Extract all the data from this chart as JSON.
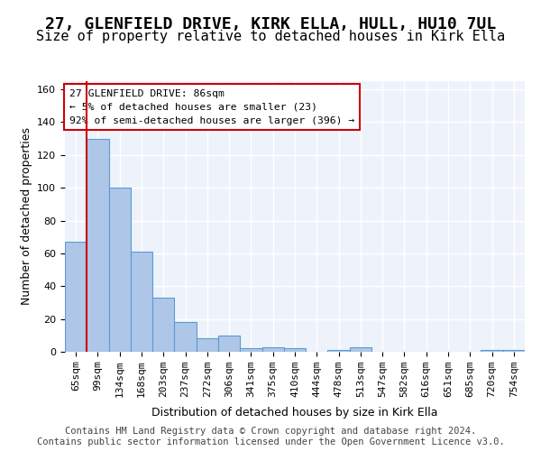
{
  "title": "27, GLENFIELD DRIVE, KIRK ELLA, HULL, HU10 7UL",
  "subtitle": "Size of property relative to detached houses in Kirk Ella",
  "xlabel": "Distribution of detached houses by size in Kirk Ella",
  "ylabel": "Number of detached properties",
  "categories": [
    "65sqm",
    "99sqm",
    "134sqm",
    "168sqm",
    "203sqm",
    "237sqm",
    "272sqm",
    "306sqm",
    "341sqm",
    "375sqm",
    "410sqm",
    "444sqm",
    "478sqm",
    "513sqm",
    "547sqm",
    "582sqm",
    "616sqm",
    "651sqm",
    "685sqm",
    "720sqm",
    "754sqm"
  ],
  "values": [
    67,
    130,
    100,
    61,
    33,
    18,
    8,
    10,
    2,
    3,
    2,
    0,
    1,
    3,
    0,
    0,
    0,
    0,
    0,
    1,
    1
  ],
  "bar_color": "#aec6e8",
  "bar_edge_color": "#5b9bd5",
  "vline_x": 0.5,
  "vline_color": "#cc0000",
  "annotation_text": "27 GLENFIELD DRIVE: 86sqm\n← 5% of detached houses are smaller (23)\n92% of semi-detached houses are larger (396) →",
  "annotation_box_color": "#ffffff",
  "annotation_box_edge": "#cc0000",
  "ylim": [
    0,
    165
  ],
  "yticks": [
    0,
    20,
    40,
    60,
    80,
    100,
    120,
    140,
    160
  ],
  "footer": "Contains HM Land Registry data © Crown copyright and database right 2024.\nContains public sector information licensed under the Open Government Licence v3.0.",
  "background_color": "#eef3fb",
  "grid_color": "#ffffff",
  "title_fontsize": 13,
  "subtitle_fontsize": 11,
  "axis_label_fontsize": 9,
  "tick_fontsize": 8,
  "footer_fontsize": 7.5
}
